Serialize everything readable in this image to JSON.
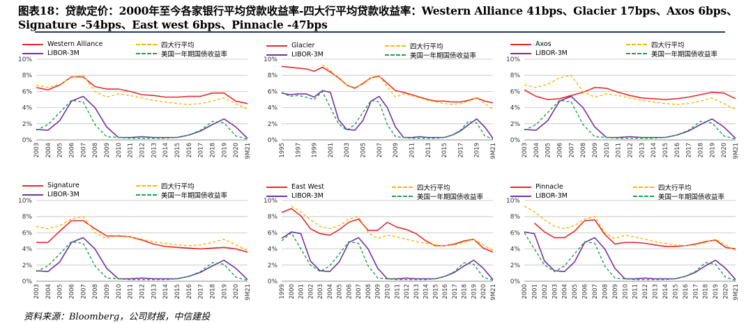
{
  "title": "图表18：贷款定价：2000年至今各家银行平均贷款收益率-四大行平均贷款收益率：Western Alliance 41bps、Glacier 17bps、Axos 6bps、Signature -54bps、East west 6bps、Pinnacle -47bps",
  "source": "资料来源：Bloomberg，公司财报，中信建投",
  "colors": {
    "bank": "#e8262a",
    "big4": "#f5b800",
    "libor": "#7030a0",
    "treasury": "#18a04b"
  },
  "chart_data": [
    {
      "type": "line",
      "name": "western-alliance",
      "x": [
        "2003",
        "2004",
        "2005",
        "2006",
        "2007",
        "2008",
        "2009",
        "2010",
        "2011",
        "2012",
        "2013",
        "2014",
        "2015",
        "2016",
        "2017",
        "2018",
        "2019",
        "2020",
        "9M21"
      ],
      "ylim": [
        0,
        10
      ],
      "yticks": [
        "0%",
        "2%",
        "4%",
        "6%",
        "8%",
        "10%"
      ],
      "series": [
        {
          "name": "Western Alliance",
          "style": "bank",
          "values": [
            6.5,
            6.2,
            6.8,
            7.8,
            7.8,
            6.6,
            6.3,
            6.3,
            6.0,
            5.6,
            5.5,
            5.3,
            5.3,
            5.4,
            5.4,
            5.8,
            5.8,
            4.8,
            4.5
          ]
        },
        {
          "name": "四大行平均",
          "style": "big4",
          "values": [
            6.8,
            6.5,
            6.9,
            7.7,
            8.0,
            6.0,
            5.3,
            5.7,
            5.5,
            5.2,
            4.9,
            4.7,
            4.5,
            4.4,
            4.5,
            4.8,
            5.2,
            4.5,
            3.8
          ]
        },
        {
          "name": "LIBOR-3M",
          "style": "libor",
          "values": [
            1.3,
            1.2,
            2.4,
            4.8,
            5.4,
            4.0,
            1.6,
            0.3,
            0.3,
            0.4,
            0.3,
            0.3,
            0.3,
            0.6,
            1.1,
            1.9,
            2.6,
            1.6,
            0.2
          ]
        },
        {
          "name": "美国一年期国债收益率",
          "style": "treasury",
          "values": [
            1.2,
            1.9,
            3.4,
            4.9,
            4.7,
            1.9,
            0.4,
            0.3,
            0.2,
            0.2,
            0.2,
            0.2,
            0.3,
            0.6,
            1.2,
            2.3,
            2.1,
            0.5,
            0.1
          ]
        }
      ]
    },
    {
      "type": "line",
      "name": "glacier",
      "x": [
        "1995",
        "1996",
        "1997",
        "1998",
        "1999",
        "2000",
        "2001",
        "2002",
        "2003",
        "2004",
        "2005",
        "2006",
        "2007",
        "2008",
        "2009",
        "2010",
        "2011",
        "2012",
        "2013",
        "2014",
        "2015",
        "2016",
        "2017",
        "2018",
        "2019",
        "2020",
        "9M21"
      ],
      "xticks": [
        "1995",
        "1997",
        "1999",
        "2001",
        "2003",
        "2005",
        "2007",
        "2009",
        "2011",
        "2013",
        "2015",
        "2017",
        "2019",
        "9M21"
      ],
      "ylim": [
        0,
        10
      ],
      "yticks": [
        "0%",
        "2%",
        "4%",
        "6%",
        "8%",
        "10%"
      ],
      "series": [
        {
          "name": "Glacier",
          "style": "bank",
          "values": [
            9.1,
            9.0,
            8.9,
            8.8,
            8.5,
            9.0,
            8.4,
            7.7,
            6.8,
            6.4,
            7.0,
            7.7,
            7.9,
            7.0,
            6.1,
            5.9,
            5.6,
            5.3,
            5.0,
            4.8,
            4.8,
            4.7,
            4.7,
            4.9,
            5.2,
            4.8,
            4.6
          ]
        },
        {
          "name": "四大行平均",
          "style": "big4",
          "values": [
            null,
            null,
            null,
            null,
            null,
            9.3,
            8.6,
            7.6,
            6.8,
            6.5,
            6.9,
            7.7,
            8.0,
            6.6,
            5.3,
            5.7,
            5.5,
            5.2,
            4.9,
            4.7,
            4.5,
            4.4,
            4.5,
            4.8,
            5.2,
            4.5,
            3.8
          ]
        },
        {
          "name": "LIBOR-3M",
          "style": "libor",
          "values": [
            5.8,
            5.6,
            5.7,
            5.7,
            5.3,
            6.1,
            5.9,
            2.5,
            1.3,
            1.2,
            2.4,
            4.8,
            5.4,
            4.0,
            1.6,
            0.3,
            0.3,
            0.4,
            0.3,
            0.3,
            0.3,
            0.6,
            1.1,
            1.9,
            2.6,
            1.6,
            0.2
          ]
        },
        {
          "name": "美国一年期国债收益率",
          "style": "treasury",
          "values": [
            5.9,
            5.4,
            5.5,
            5.3,
            5.0,
            6.0,
            4.0,
            2.0,
            1.2,
            1.9,
            3.4,
            4.9,
            4.7,
            1.9,
            0.4,
            0.3,
            0.2,
            0.2,
            0.2,
            0.2,
            0.3,
            0.6,
            1.2,
            2.3,
            2.1,
            0.5,
            0.1
          ]
        }
      ]
    },
    {
      "type": "line",
      "name": "axos",
      "x": [
        "2003",
        "2004",
        "2005",
        "2006",
        "2007",
        "2008",
        "2009",
        "2010",
        "2011",
        "2012",
        "2013",
        "2014",
        "2015",
        "2016",
        "2017",
        "2018",
        "2019",
        "2020",
        "9M21"
      ],
      "ylim": [
        0,
        10
      ],
      "yticks": [
        "0%",
        "2%",
        "4%",
        "6%",
        "8%",
        "10%"
      ],
      "series": [
        {
          "name": "Axos",
          "style": "bank",
          "values": [
            6.2,
            5.4,
            5.0,
            5.1,
            5.5,
            5.9,
            6.5,
            6.4,
            5.9,
            5.5,
            5.2,
            5.1,
            5.0,
            5.1,
            5.3,
            5.6,
            5.9,
            5.8,
            5.1
          ]
        },
        {
          "name": "四大行平均",
          "style": "big4",
          "values": [
            6.8,
            6.5,
            6.9,
            7.7,
            8.0,
            6.0,
            5.3,
            5.7,
            5.5,
            5.2,
            4.9,
            4.7,
            4.5,
            4.4,
            4.5,
            4.8,
            5.2,
            4.5,
            3.8
          ]
        },
        {
          "name": "LIBOR-3M",
          "style": "libor",
          "values": [
            1.3,
            1.2,
            2.4,
            4.8,
            5.4,
            4.0,
            1.6,
            0.3,
            0.3,
            0.4,
            0.3,
            0.3,
            0.3,
            0.6,
            1.1,
            1.9,
            2.6,
            1.6,
            0.2
          ]
        },
        {
          "name": "美国一年期国债收益率",
          "style": "treasury",
          "values": [
            1.2,
            1.9,
            3.4,
            4.9,
            4.7,
            1.9,
            0.4,
            0.3,
            0.2,
            0.2,
            0.2,
            0.2,
            0.3,
            0.6,
            1.2,
            2.3,
            2.1,
            0.5,
            0.1
          ]
        }
      ]
    },
    {
      "type": "line",
      "name": "signature",
      "x": [
        "2003",
        "2004",
        "2005",
        "2006",
        "2007",
        "2008",
        "2009",
        "2010",
        "2011",
        "2012",
        "2013",
        "2014",
        "2015",
        "2016",
        "2017",
        "2018",
        "2019",
        "2020",
        "9M21"
      ],
      "ylim": [
        0,
        10
      ],
      "yticks": [
        "0%",
        "2%",
        "4%",
        "6%",
        "8%",
        "10%"
      ],
      "series": [
        {
          "name": "Signature",
          "style": "bank",
          "values": [
            4.8,
            4.8,
            6.2,
            7.5,
            7.5,
            6.5,
            5.6,
            5.6,
            5.5,
            5.1,
            4.6,
            4.3,
            4.2,
            4.1,
            4.0,
            4.1,
            4.2,
            4.0,
            3.6
          ]
        },
        {
          "name": "四大行平均",
          "style": "big4",
          "values": [
            6.8,
            6.5,
            6.9,
            7.7,
            8.0,
            6.0,
            5.3,
            5.7,
            5.5,
            5.2,
            4.9,
            4.7,
            4.5,
            4.4,
            4.5,
            4.8,
            5.2,
            4.5,
            3.8
          ]
        },
        {
          "name": "LIBOR-3M",
          "style": "libor",
          "values": [
            1.3,
            1.2,
            2.4,
            4.8,
            5.4,
            4.0,
            1.6,
            0.3,
            0.3,
            0.4,
            0.3,
            0.3,
            0.3,
            0.6,
            1.1,
            1.9,
            2.6,
            1.6,
            0.2
          ]
        },
        {
          "name": "美国一年期国债收益率",
          "style": "treasury",
          "values": [
            1.2,
            1.9,
            3.4,
            4.9,
            4.7,
            1.9,
            0.4,
            0.3,
            0.2,
            0.2,
            0.2,
            0.2,
            0.3,
            0.6,
            1.2,
            2.3,
            2.1,
            0.5,
            0.1
          ]
        }
      ]
    },
    {
      "type": "line",
      "name": "east-west",
      "x": [
        "1999",
        "2000",
        "2001",
        "2002",
        "2003",
        "2004",
        "2005",
        "2006",
        "2007",
        "2008",
        "2009",
        "2010",
        "2011",
        "2012",
        "2013",
        "2014",
        "2015",
        "2016",
        "2017",
        "2018",
        "2019",
        "2020",
        "9M21"
      ],
      "ylim": [
        0,
        10
      ],
      "yticks": [
        "0%",
        "2%",
        "4%",
        "6%",
        "8%",
        "10%"
      ],
      "series": [
        {
          "name": "East West",
          "style": "bank",
          "values": [
            8.5,
            9.0,
            8.1,
            6.5,
            5.9,
            5.7,
            6.4,
            7.3,
            7.7,
            6.3,
            6.3,
            7.3,
            6.7,
            6.4,
            5.9,
            5.0,
            4.4,
            4.4,
            4.6,
            5.0,
            5.2,
            4.1,
            3.6
          ]
        },
        {
          "name": "四大行平均",
          "style": "big4",
          "values": [
            null,
            9.3,
            8.6,
            7.6,
            6.8,
            6.5,
            6.9,
            7.7,
            8.0,
            6.0,
            5.3,
            5.7,
            5.5,
            5.2,
            4.9,
            4.7,
            4.5,
            4.4,
            4.5,
            4.8,
            5.2,
            4.5,
            3.8
          ]
        },
        {
          "name": "LIBOR-3M",
          "style": "libor",
          "values": [
            5.3,
            6.1,
            5.9,
            2.5,
            1.3,
            1.2,
            2.4,
            4.8,
            5.4,
            4.0,
            1.6,
            0.3,
            0.3,
            0.4,
            0.3,
            0.3,
            0.3,
            0.6,
            1.1,
            1.9,
            2.6,
            1.6,
            0.2
          ]
        },
        {
          "name": "美国一年期国债收益率",
          "style": "treasury",
          "values": [
            5.0,
            6.0,
            4.0,
            2.0,
            1.2,
            1.9,
            3.4,
            4.9,
            4.7,
            1.9,
            0.4,
            0.3,
            0.2,
            0.2,
            0.2,
            0.2,
            0.3,
            0.6,
            1.2,
            2.3,
            2.1,
            0.5,
            0.1
          ]
        }
      ]
    },
    {
      "type": "line",
      "name": "pinnacle",
      "x": [
        "2000",
        "2001",
        "2002",
        "2003",
        "2004",
        "2005",
        "2006",
        "2007",
        "2008",
        "2009",
        "2010",
        "2011",
        "2012",
        "2013",
        "2014",
        "2015",
        "2016",
        "2017",
        "2018",
        "2019",
        "2020",
        "9M21"
      ],
      "ylim": [
        0,
        10
      ],
      "yticks": [
        "0%",
        "2%",
        "4%",
        "6%",
        "8%",
        "10%"
      ],
      "series": [
        {
          "name": "Pinnacle",
          "style": "bank",
          "values": [
            null,
            7.2,
            6.1,
            5.4,
            5.4,
            6.2,
            7.5,
            7.6,
            5.8,
            4.6,
            4.8,
            4.8,
            4.7,
            4.5,
            4.3,
            4.3,
            4.4,
            4.6,
            4.9,
            5.1,
            4.2,
            4.0
          ]
        },
        {
          "name": "四大行平均",
          "style": "big4",
          "values": [
            9.3,
            8.6,
            7.6,
            6.8,
            6.5,
            6.9,
            7.7,
            8.0,
            6.0,
            5.3,
            5.7,
            5.5,
            5.2,
            4.9,
            4.7,
            4.5,
            4.4,
            4.5,
            4.8,
            5.2,
            4.5,
            3.8
          ]
        },
        {
          "name": "LIBOR-3M",
          "style": "libor",
          "values": [
            6.1,
            5.9,
            2.5,
            1.3,
            1.2,
            2.4,
            4.8,
            5.4,
            4.0,
            1.6,
            0.3,
            0.3,
            0.4,
            0.3,
            0.3,
            0.3,
            0.6,
            1.1,
            1.9,
            2.6,
            1.6,
            0.2
          ]
        },
        {
          "name": "美国一年期国债收益率",
          "style": "treasury",
          "values": [
            6.0,
            4.0,
            2.0,
            1.2,
            1.9,
            3.4,
            4.9,
            4.7,
            1.9,
            0.4,
            0.3,
            0.2,
            0.2,
            0.2,
            0.2,
            0.3,
            0.6,
            1.2,
            2.3,
            2.1,
            0.5,
            0.1
          ]
        }
      ]
    }
  ]
}
